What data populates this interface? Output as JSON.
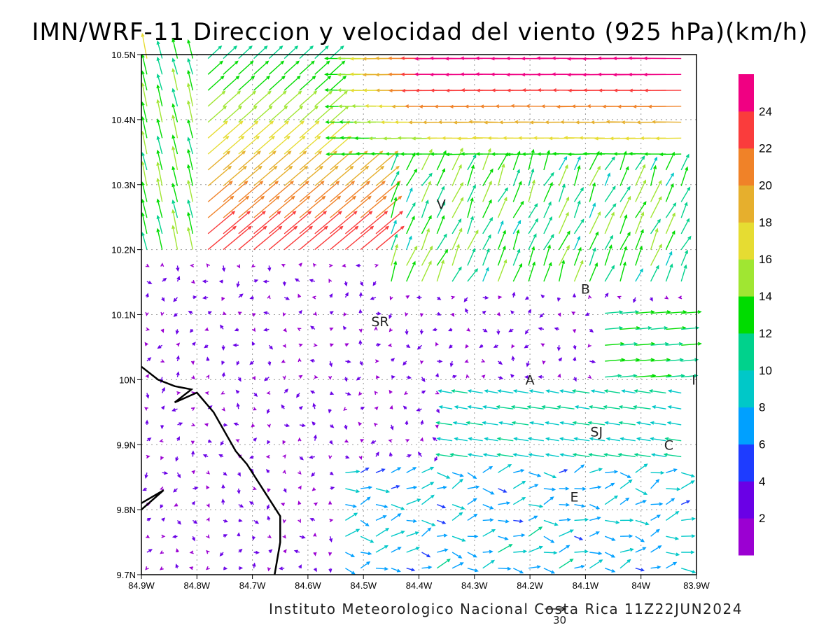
{
  "title": "IMN/WRF-11 Direccion y velocidad del viento (925 hPa)(km/h)",
  "footer": "Instituto Meteorologico Nacional Costa Rica 11Z22JUN2024",
  "reference_vector": {
    "label": "30",
    "speed": 30
  },
  "map": {
    "lon_range": [
      -84.9,
      -83.9
    ],
    "lat_range": [
      9.7,
      10.5
    ],
    "grid": true,
    "lon_ticks": [
      {
        "value": -84.9,
        "label": "84.9W"
      },
      {
        "value": -84.8,
        "label": "84.8W"
      },
      {
        "value": -84.7,
        "label": "84.7W"
      },
      {
        "value": -84.6,
        "label": "84.6W"
      },
      {
        "value": -84.5,
        "label": "84.5W"
      },
      {
        "value": -84.4,
        "label": "84.4W"
      },
      {
        "value": -84.3,
        "label": "84.3W"
      },
      {
        "value": -84.2,
        "label": "84.2W"
      },
      {
        "value": -84.1,
        "label": "84.1W"
      },
      {
        "value": -84.0,
        "label": "84W"
      },
      {
        "value": -83.9,
        "label": "83.9W"
      }
    ],
    "lat_ticks": [
      {
        "value": 10.5,
        "label": "10.5N"
      },
      {
        "value": 10.4,
        "label": "10.4N"
      },
      {
        "value": 10.3,
        "label": "10.3N"
      },
      {
        "value": 10.2,
        "label": "10.2N"
      },
      {
        "value": 10.1,
        "label": "10.1N"
      },
      {
        "value": 10.0,
        "label": "10N"
      },
      {
        "value": 9.9,
        "label": "9.9N"
      },
      {
        "value": 9.8,
        "label": "9.8N"
      },
      {
        "value": 9.7,
        "label": "9.7N"
      }
    ],
    "places": [
      {
        "label": "V",
        "lon": -84.36,
        "lat": 10.27
      },
      {
        "label": "B",
        "lon": -84.1,
        "lat": 10.14
      },
      {
        "label": "SR",
        "lon": -84.47,
        "lat": 10.09
      },
      {
        "label": "A",
        "lon": -84.2,
        "lat": 10.0
      },
      {
        "label": "I",
        "lon": -83.905,
        "lat": 10.0
      },
      {
        "label": "SJ",
        "lon": -84.08,
        "lat": 9.92
      },
      {
        "label": "C",
        "lon": -83.95,
        "lat": 9.9
      },
      {
        "label": "E",
        "lon": -84.12,
        "lat": 9.82
      }
    ],
    "coastline": [
      [
        -84.9,
        10.02
      ],
      [
        -84.87,
        10.0
      ],
      [
        -84.84,
        9.99
      ],
      [
        -84.81,
        9.985
      ],
      [
        -84.84,
        9.965
      ],
      [
        -84.8,
        9.98
      ],
      [
        -84.77,
        9.95
      ],
      [
        -84.73,
        9.89
      ],
      [
        -84.71,
        9.87
      ],
      [
        -84.68,
        9.83
      ],
      [
        -84.65,
        9.79
      ],
      [
        -84.65,
        9.75
      ],
      [
        -84.66,
        9.7
      ]
    ],
    "island": [
      [
        -84.9,
        9.81
      ],
      [
        -84.86,
        9.83
      ],
      [
        -84.9,
        9.8
      ]
    ]
  },
  "colorbar": {
    "levels": [
      2,
      4,
      6,
      8,
      10,
      12,
      14,
      16,
      18,
      20,
      22,
      24
    ],
    "colors": [
      "#9b00d2",
      "#6a00e6",
      "#1e3cff",
      "#00a0ff",
      "#00c8c8",
      "#00d28c",
      "#00dc00",
      "#a0e632",
      "#e6dc32",
      "#e6af2d",
      "#f08228",
      "#fa3c3c",
      "#f00082"
    ]
  }
}
